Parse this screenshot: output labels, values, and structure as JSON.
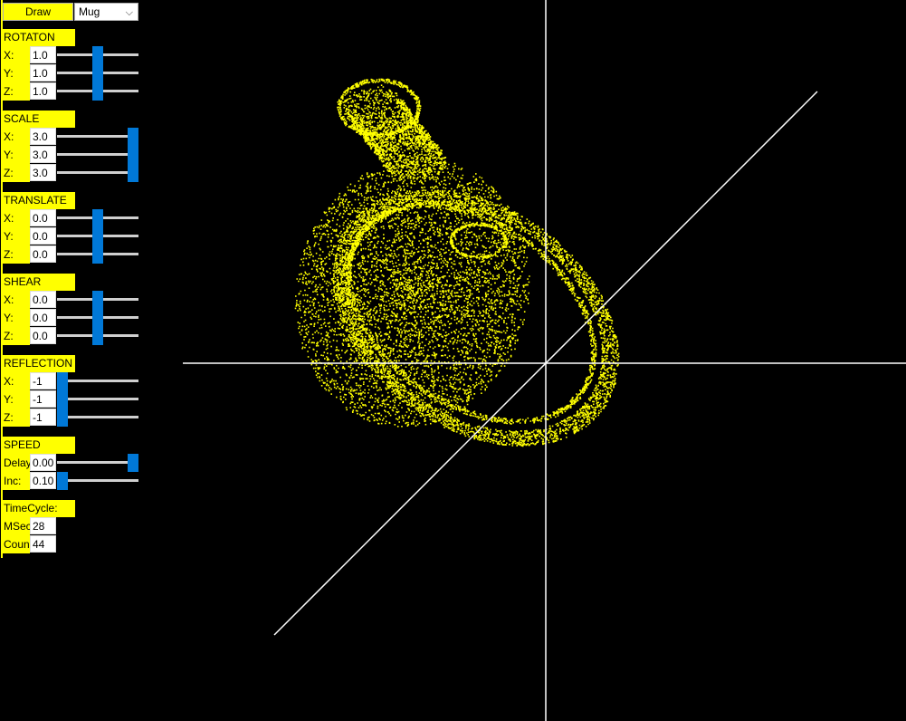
{
  "toolbar": {
    "draw_label": "Draw",
    "model_select": "Mug"
  },
  "sections": {
    "rotation": {
      "title": "ROTATON",
      "x": "1.0",
      "y": "1.0",
      "z": "1.0",
      "x_level": 0.5,
      "y_level": 0.5,
      "z_level": 0.5
    },
    "scale": {
      "title": "SCALE",
      "x": "3.0",
      "y": "3.0",
      "z": "3.0",
      "x_level": 1.0,
      "y_level": 1.0,
      "z_level": 1.0
    },
    "translate": {
      "title": "TRANSLATE",
      "x": "0.0",
      "y": "0.0",
      "z": "0.0",
      "x_level": 0.5,
      "y_level": 0.5,
      "z_level": 0.5
    },
    "shear": {
      "title": "SHEAR",
      "x": "0.0",
      "y": "0.0",
      "z": "0.0",
      "x_level": 0.5,
      "y_level": 0.5,
      "z_level": 0.5
    },
    "reflection": {
      "title": "REFLECTION",
      "x": "-1",
      "y": "-1",
      "z": "-1",
      "x_level": 0.0,
      "y_level": 0.0,
      "z_level": 0.0
    },
    "speed": {
      "title": "SPEED",
      "delay_label": "Delay",
      "delay": "0.00",
      "inc_label": "Inc:",
      "inc": "0.10",
      "delay_level": 1.0,
      "inc_level": 0.0
    },
    "timecycle": {
      "title": "TimeCycle:",
      "msec_label": "MSec",
      "msec": "28",
      "count_label": "Coun",
      "count": "44"
    }
  },
  "axis_labels": {
    "x": "X:",
    "y": "Y:",
    "z": "Z:"
  },
  "colors": {
    "panel": "#ffff00",
    "point_cloud": "#ffff00",
    "axes": "#ffffff",
    "slider_thumb": "#0078d7",
    "background": "#000000"
  }
}
